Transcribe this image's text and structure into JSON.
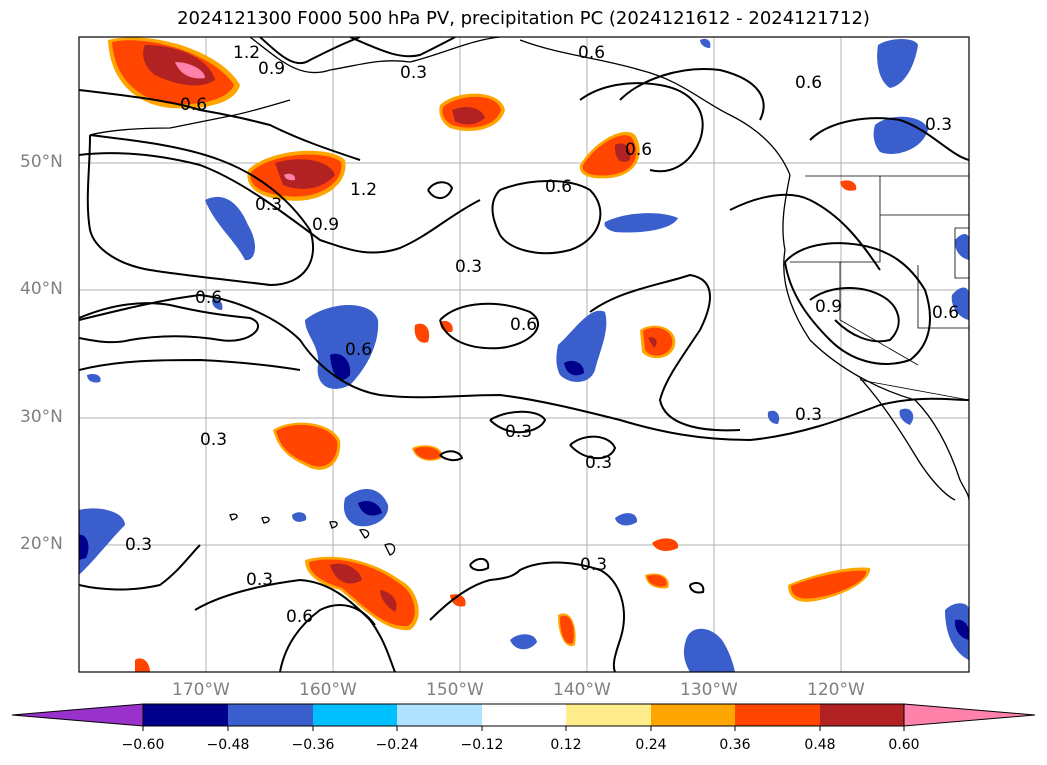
{
  "title": "2024121300 F000 500 hPa PV, precipitation PC (2024121612 - 2024121712)",
  "map": {
    "lat_labels": [
      "50°N",
      "40°N",
      "30°N",
      "20°N"
    ],
    "lon_labels": [
      "170°W",
      "160°W",
      "150°W",
      "140°W",
      "130°W",
      "120°W"
    ],
    "contour_labels": [
      "1.2",
      "0.9",
      "0.6",
      "0.3",
      "0.6",
      "0.3",
      "0.9",
      "1.2",
      "0.6",
      "0.3",
      "0.6",
      "0.6",
      "0.6",
      "0.9",
      "0.6",
      "0.3",
      "0.3",
      "0.3",
      "0.3",
      "0.3",
      "0.3",
      "0.6",
      "0.3",
      "0.6",
      "0.6",
      "0.3"
    ],
    "grid_visible": true
  },
  "colorbar": {
    "ticks": [
      "−0.60",
      "−0.48",
      "−0.36",
      "−0.24",
      "−0.12",
      "0.12",
      "0.24",
      "0.36",
      "0.48",
      "0.60"
    ],
    "colors": [
      "#9932cc",
      "#00008b",
      "#3a5fcd",
      "#00bfff",
      "#b0e2ff",
      "#ffffff",
      "#ffec8b",
      "#ffa500",
      "#ff4500",
      "#b22222",
      "#ff82ab"
    ],
    "extend": "both"
  }
}
